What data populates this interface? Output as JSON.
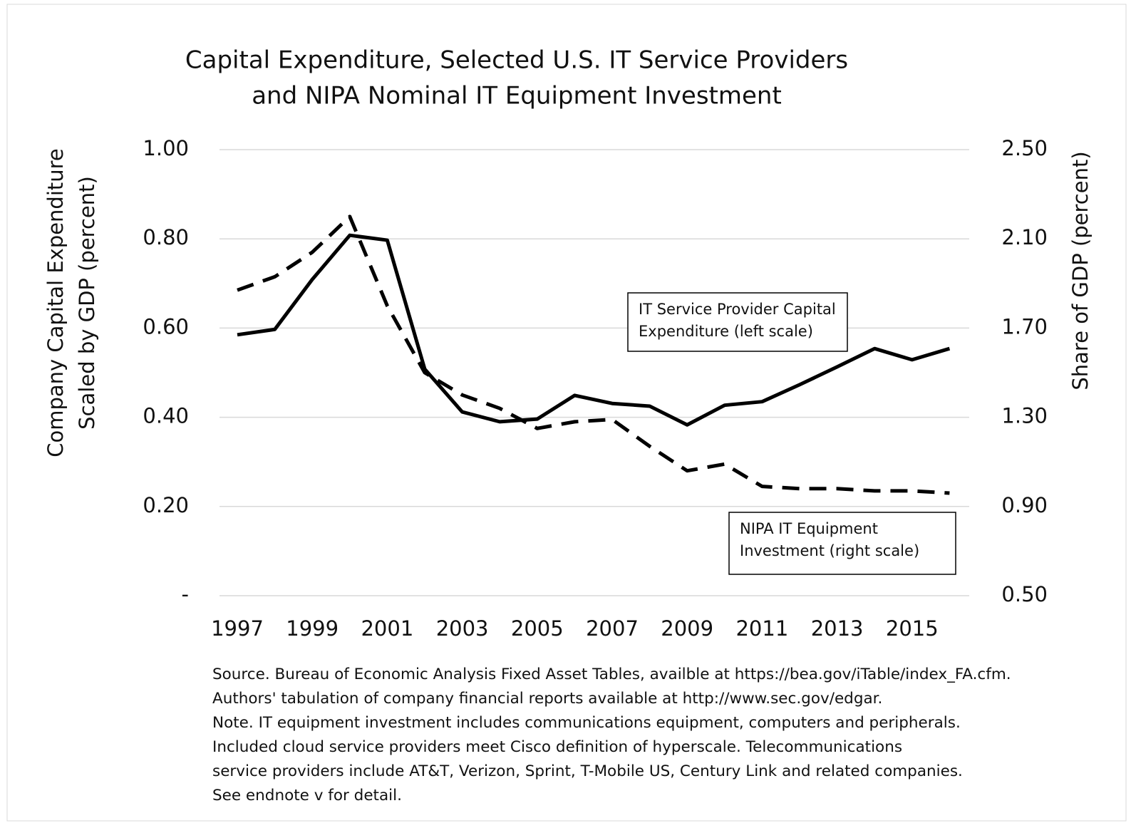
{
  "chart_data": {
    "type": "line",
    "title": [
      "Capital Expenditure, Selected U.S. IT Service Providers",
      "and NIPA Nominal IT Equipment Investment"
    ],
    "ylabel": [
      "Company Capital Expenditure",
      "Scaled by GDP (percent)"
    ],
    "y2label": "Share of GDP (percent)",
    "categories": [
      "1997",
      null,
      "1999",
      null,
      "2001",
      null,
      "2003",
      null,
      "2005",
      null,
      "2007",
      null,
      "2009",
      null,
      "2011",
      null,
      "2013",
      null,
      "2015",
      null
    ],
    "series": [
      {
        "color": "#000000",
        "dash": false,
        "axis": "y",
        "values": [
          0.585,
          0.597,
          0.709,
          0.808,
          0.797,
          0.508,
          0.412,
          0.39,
          0.396,
          0.449,
          0.431,
          0.425,
          0.383,
          0.427,
          0.435,
          0.473,
          0.513,
          0.554,
          0.529,
          0.554
        ]
      },
      {
        "color": "#000000",
        "dash": true,
        "axis": "y2",
        "values": [
          1.87,
          1.93,
          2.04,
          2.2,
          1.8,
          1.5,
          1.4,
          1.34,
          1.25,
          1.28,
          1.29,
          1.17,
          1.06,
          1.09,
          0.99,
          0.98,
          0.98,
          0.97,
          0.97,
          0.96
        ]
      }
    ],
    "ylim": [
      0,
      1.0
    ],
    "yticks": [
      {
        "value": 0,
        "label": "-"
      },
      {
        "value": 0.2,
        "label": "0.20"
      },
      {
        "value": 0.4,
        "label": "0.40"
      },
      {
        "value": 0.6,
        "label": "0.60"
      },
      {
        "value": 0.8,
        "label": "0.80"
      },
      {
        "value": 1.0,
        "label": "1.00"
      }
    ],
    "y2lim": [
      0.5,
      2.5
    ],
    "y2ticks": [
      {
        "value": 0.5,
        "label": "0.50"
      },
      {
        "value": 0.9,
        "label": "0.90"
      },
      {
        "value": 1.3,
        "label": "1.30"
      },
      {
        "value": 1.7,
        "label": "1.70"
      },
      {
        "value": 2.1,
        "label": "2.10"
      },
      {
        "value": 2.5,
        "label": "2.50"
      }
    ],
    "grid": true,
    "annotations": [
      {
        "lines": [
          "IT Service Provider Capital",
          "Expenditure (left scale)"
        ]
      },
      {
        "lines": [
          "NIPA IT Equipment",
          "Investment (right scale)"
        ]
      }
    ],
    "note": [
      "Source.  Bureau of Economic Analysis Fixed Asset Tables, availble at https://bea.gov/iTable/index_FA.cfm.",
      "Authors' tabulation of company financial reports available at http://www.sec.gov/edgar.",
      "Note.  IT equipment investment includes communications equipment, computers and peripherals.",
      "Included cloud service providers meet Cisco definition of hyperscale.  Telecommunications",
      "service providers include AT&T, Verizon, Sprint, T-Mobile US, Century Link and related companies.",
      "See endnote v for detail."
    ]
  }
}
